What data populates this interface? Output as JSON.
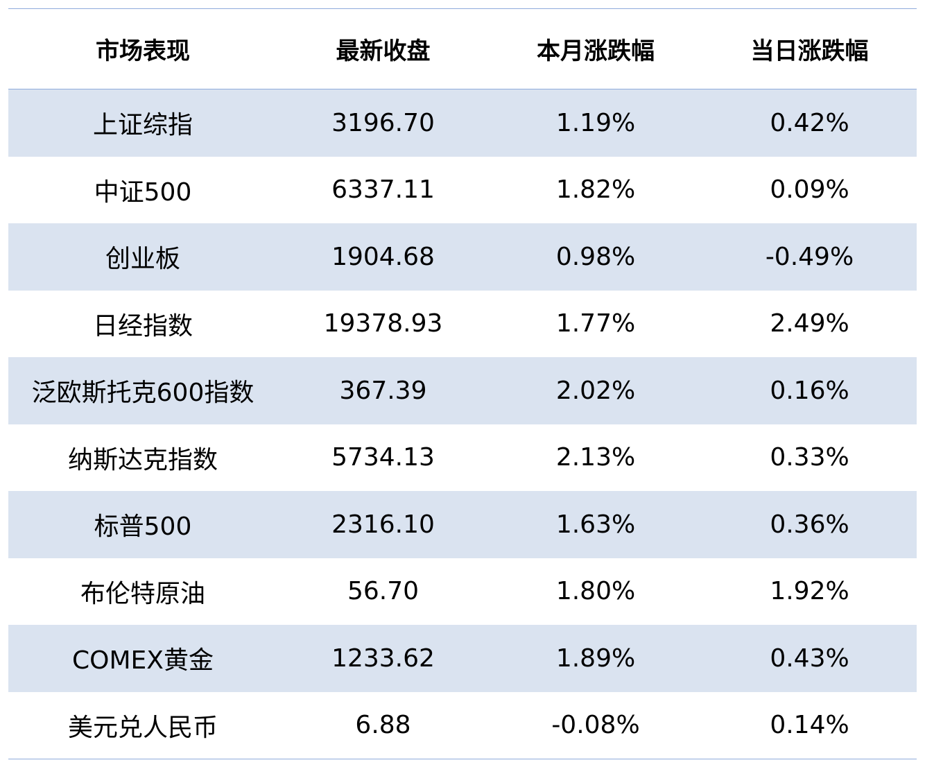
{
  "table": {
    "headers": [
      "市场表现",
      "最新收盘",
      "本月涨跌幅",
      "当日涨跌幅"
    ],
    "rows": [
      [
        "上证综指",
        "3196.70",
        "1.19%",
        "0.42%"
      ],
      [
        "中证500",
        "6337.11",
        "1.82%",
        "0.09%"
      ],
      [
        "创业板",
        "1904.68",
        "0.98%",
        "-0.49%"
      ],
      [
        "日经指数",
        "19378.93",
        "1.77%",
        "2.49%"
      ],
      [
        "泛欧斯托克600指数",
        "367.39",
        "2.02%",
        "0.16%"
      ],
      [
        "纳斯达克指数",
        "5734.13",
        "2.13%",
        "0.33%"
      ],
      [
        "标普500",
        "2316.10",
        "1.63%",
        "0.36%"
      ],
      [
        "布伦特原油",
        "56.70",
        "1.80%",
        "1.92%"
      ],
      [
        "COMEX黄金",
        "1233.62",
        "1.89%",
        "0.43%"
      ],
      [
        "美元兑人民币",
        "6.88",
        "-0.08%",
        "0.14%"
      ]
    ]
  },
  "colors": {
    "header_rule": "#8eaadb",
    "shaded_row": "#dae3f0",
    "text": "#000000"
  }
}
